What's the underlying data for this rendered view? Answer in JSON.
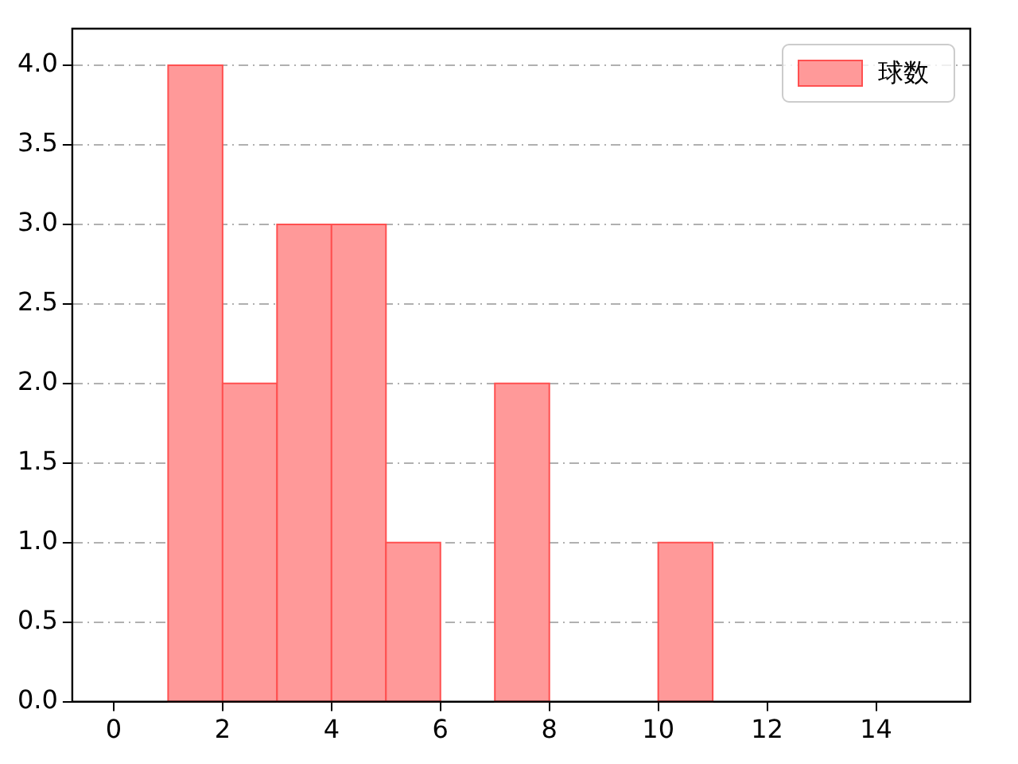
{
  "chart_data": {
    "type": "histogram",
    "bins": [
      1,
      2,
      3,
      4,
      5,
      6,
      7,
      8,
      9,
      10,
      11
    ],
    "series": [
      {
        "name": "球数",
        "color": "#ff9999",
        "values": [
          4,
          2,
          3,
          3,
          1,
          0,
          2,
          0,
          0,
          1
        ]
      }
    ],
    "xlim": [
      -0.76,
      15.73
    ],
    "xticks": [
      0,
      2,
      4,
      6,
      8,
      10,
      12,
      14
    ],
    "ylim": [
      0,
      4.23
    ],
    "yticks": [
      {
        "value": 0,
        "label": "0.0"
      },
      {
        "value": 0.5,
        "label": "0.5"
      },
      {
        "value": 1,
        "label": "1.0"
      },
      {
        "value": 1.5,
        "label": "1.5"
      },
      {
        "value": 2,
        "label": "2.0"
      },
      {
        "value": 2.5,
        "label": "2.5"
      },
      {
        "value": 3,
        "label": "3.0"
      },
      {
        "value": 3.5,
        "label": "3.5"
      },
      {
        "value": 4,
        "label": "4.0"
      }
    ],
    "grid": "y",
    "legend": "top right"
  }
}
